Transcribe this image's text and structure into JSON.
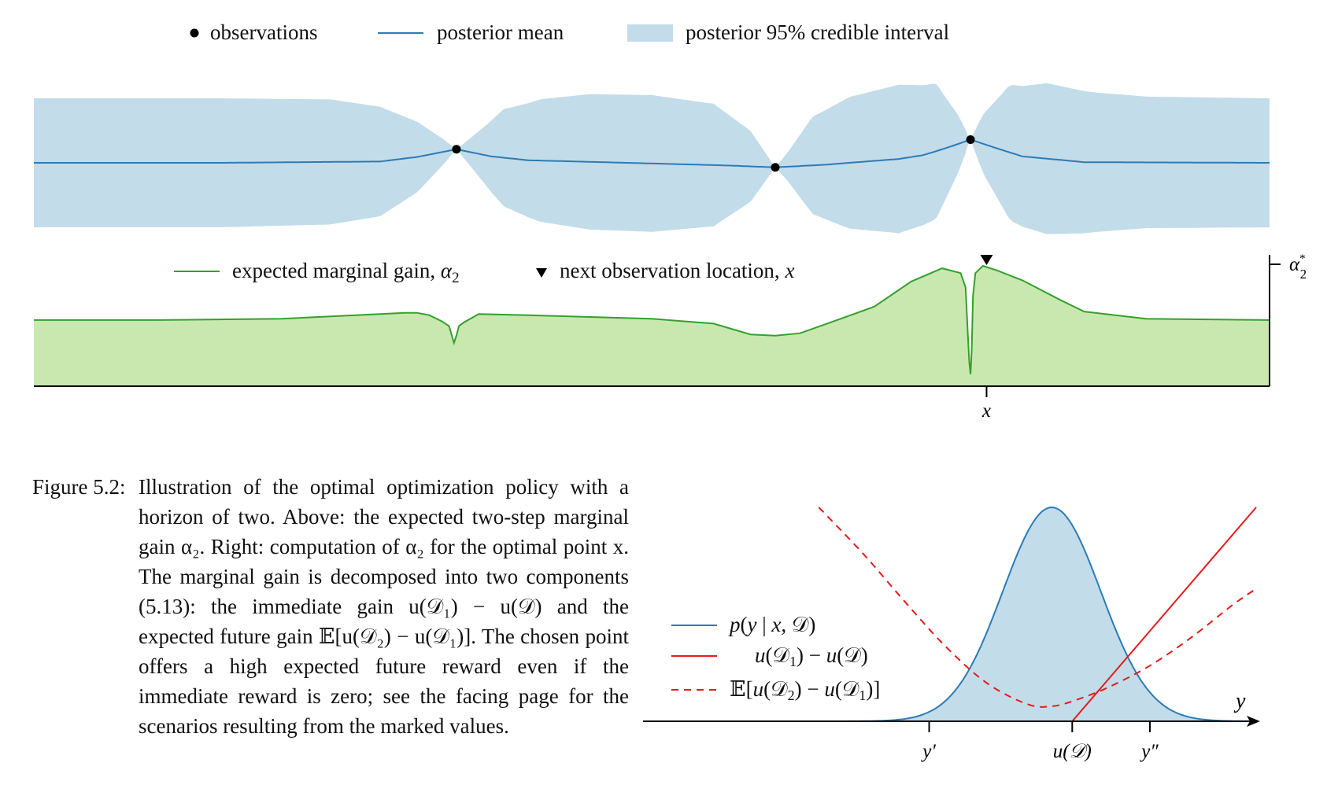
{
  "figure": {
    "caption_label": "Figure 5.2:",
    "caption_text": "Illustration of the optimal optimization policy with a horizon of two. Above: the expected two-step marginal gain α₂. Right: computation of α₂ for the optimal point x. The marginal gain is decomposed into two components (5.13): the immediate gain u(𝒟₁) − u(𝒟) and the expected future gain 𝔼[u(𝒟₂) − u(𝒟₁)]. The chosen point offers a high expected future reward even if the immediate reward is zero; see the facing page for the scenarios resulting from the marked values."
  },
  "colors": {
    "mean": "#2c7bb6",
    "band": "#c3dcea",
    "gain_line": "#33a02c",
    "gain_fill": "#c9e8b0",
    "red": "#e41a1c",
    "black": "#000000"
  },
  "chart_data": [
    {
      "type": "area",
      "panel": "gp-posterior",
      "legend": {
        "observations": "observations",
        "mean": "posterior mean",
        "band": "posterior 95% credible interval"
      },
      "xlim": [
        0,
        1
      ],
      "ylim": [
        -1,
        1
      ],
      "observations": [
        {
          "x": 0.342,
          "y": 0.21
        },
        {
          "x": 0.6,
          "y": -0.07
        },
        {
          "x": 0.758,
          "y": 0.36
        }
      ],
      "mean": {
        "x": [
          0,
          0.15,
          0.28,
          0.31,
          0.342,
          0.37,
          0.4,
          0.48,
          0.56,
          0.6,
          0.64,
          0.7,
          0.72,
          0.74,
          0.758,
          0.78,
          0.8,
          0.85,
          1.0
        ],
        "y": [
          0,
          0,
          0.02,
          0.09,
          0.21,
          0.1,
          0.04,
          0.0,
          -0.04,
          -0.07,
          -0.03,
          0.06,
          0.12,
          0.24,
          0.36,
          0.22,
          0.1,
          0.01,
          0
        ]
      },
      "band_halfwidth": {
        "x": [
          0,
          0.15,
          0.24,
          0.28,
          0.31,
          0.33,
          0.342,
          0.355,
          0.38,
          0.41,
          0.45,
          0.5,
          0.55,
          0.58,
          0.592,
          0.6,
          0.61,
          0.63,
          0.66,
          0.7,
          0.73,
          0.748,
          0.758,
          0.768,
          0.79,
          0.82,
          0.86,
          0.9,
          1.0
        ],
        "h": [
          1,
          1,
          0.97,
          0.85,
          0.55,
          0.22,
          0,
          0.25,
          0.75,
          0.95,
          1.05,
          1.06,
          0.95,
          0.55,
          0.22,
          0,
          0.22,
          0.75,
          1.02,
          1.15,
          1.05,
          0.45,
          0,
          0.45,
          1.05,
          1.17,
          1.08,
          1.02,
          1
        ]
      }
    },
    {
      "type": "area",
      "panel": "expected-marginal-gain",
      "legend": {
        "gain": "expected marginal gain, α2",
        "next": "next observation location, x"
      },
      "xlim": [
        0,
        1
      ],
      "ylim": [
        0,
        1
      ],
      "x_tick_label": "x",
      "x_tick_at": 0.771,
      "y_tick_label": "α*2",
      "gain": {
        "x": [
          0,
          0.1,
          0.2,
          0.3,
          0.31,
          0.32,
          0.33,
          0.336,
          0.34,
          0.342,
          0.344,
          0.348,
          0.36,
          0.4,
          0.5,
          0.55,
          0.58,
          0.6,
          0.62,
          0.65,
          0.68,
          0.71,
          0.735,
          0.75,
          0.754,
          0.756,
          0.757,
          0.758,
          0.759,
          0.76,
          0.762,
          0.768,
          0.78,
          0.8,
          0.83,
          0.85,
          0.9,
          1.0
        ],
        "y": [
          0.55,
          0.55,
          0.56,
          0.61,
          0.61,
          0.59,
          0.54,
          0.5,
          0.36,
          0.42,
          0.5,
          0.53,
          0.6,
          0.59,
          0.56,
          0.52,
          0.43,
          0.42,
          0.44,
          0.55,
          0.66,
          0.87,
          0.98,
          0.94,
          0.82,
          0.4,
          0.2,
          0.1,
          0.3,
          0.75,
          0.94,
          1.0,
          0.96,
          0.88,
          0.72,
          0.62,
          0.56,
          0.55
        ]
      },
      "next_observation": {
        "x": 0.771,
        "marker": "triangle-down"
      }
    },
    {
      "type": "line",
      "panel": "alpha2-decomposition",
      "legend": {
        "p": "p(y | x, 𝒟)",
        "immediate": "u(𝒟₁) − u(𝒟)",
        "future": "𝔼[u(𝒟₂) − u(𝒟₁)]"
      },
      "x_axis_label": "y",
      "x_ticks": [
        {
          "label": "y′",
          "x": -1.5
        },
        {
          "label": "u(𝒟)",
          "x": 0.25
        },
        {
          "label": "y″",
          "x": 1.2
        }
      ],
      "xlim": [
        -5.0,
        2.5
      ],
      "ylim": [
        0,
        1.0
      ],
      "density": {
        "mean": 0.0,
        "sd": 0.6,
        "peak": 1.0
      },
      "immediate_gain": {
        "x": [
          -5.0,
          0.25,
          2.5
        ],
        "y": [
          0,
          0,
          1.0
        ]
      },
      "future_gain": {
        "x": [
          -2.85,
          -2.3,
          -1.8,
          -1.3,
          -0.8,
          -0.3,
          0.0,
          0.3,
          0.7,
          1.2,
          1.7,
          2.2,
          2.5
        ],
        "y": [
          1.0,
          0.78,
          0.56,
          0.35,
          0.18,
          0.08,
          0.07,
          0.1,
          0.16,
          0.26,
          0.39,
          0.54,
          0.62
        ]
      }
    }
  ]
}
